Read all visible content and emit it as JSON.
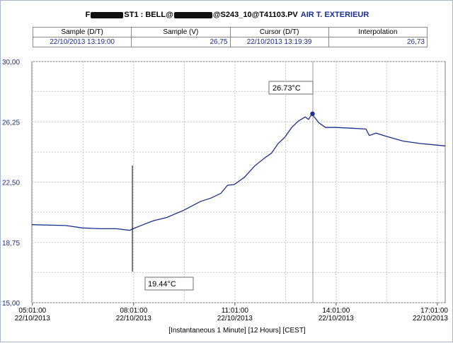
{
  "title": {
    "prefix": "F",
    "mid1": "ST1 : BELL@",
    "mid2": "@S243_10@T41103.PV",
    "tag": "AIR T. EXTERIEUR"
  },
  "info_table": {
    "headers": [
      "Sample (D/T)",
      "Sample (V)",
      "Cursor (D/T)",
      "Interpolation"
    ],
    "values": [
      "22/10/2013 13:19:00",
      "26,75",
      "22/10/2013 13:19:39",
      "26,73"
    ]
  },
  "cursor_label": "26.73°C",
  "marker_label": "19.44°C",
  "footer": "[Instantaneous 1 Minute] [12 Hours] [CEST]",
  "colors": {
    "series": "#1a2f8c",
    "labels": "#1a2f8c",
    "grid": "#c8c8c8",
    "cursor": "#9a9a9a"
  },
  "chart_data": {
    "type": "line",
    "ylim": [
      15,
      30
    ],
    "yticks": [
      "30,00",
      "26,25",
      "22,50",
      "18,75",
      "15,00"
    ],
    "ytick_values": [
      30,
      26.25,
      22.5,
      18.75,
      15
    ],
    "xlim_hours": [
      5,
      17.25
    ],
    "xticks": [
      {
        "time": "05:01:00",
        "date": "22/10/2013",
        "hour": 5.0167
      },
      {
        "time": "08:01:00",
        "date": "22/10/2013",
        "hour": 8.0167
      },
      {
        "time": "11:01:00",
        "date": "22/10/2013",
        "hour": 11.0167
      },
      {
        "time": "14:01:00",
        "date": "22/10/2013",
        "hour": 14.0167
      },
      {
        "time": "17:01:00",
        "date": "22/10/2013",
        "hour": 17.0167
      }
    ],
    "cursor_hour": 13.328,
    "marker_hour": 7.98,
    "sample_point": {
      "x": 13.317,
      "y": 26.75
    },
    "series": [
      {
        "x": [
          5.0,
          6.0,
          6.5,
          7.0,
          7.5,
          7.9,
          8.0,
          8.3,
          8.6,
          9.0,
          9.5,
          10.0,
          10.3,
          10.6,
          10.8,
          11.0,
          11.3,
          11.6,
          11.9,
          12.1,
          12.3,
          12.5,
          12.7,
          12.9,
          13.1,
          13.2,
          13.3,
          13.5,
          13.7,
          14.0,
          14.5,
          14.9,
          15.0,
          15.2,
          15.5,
          16.0,
          16.5,
          17.0,
          17.25
        ],
        "y": [
          19.85,
          19.8,
          19.65,
          19.6,
          19.6,
          19.5,
          19.6,
          19.85,
          20.1,
          20.3,
          20.75,
          21.3,
          21.5,
          21.8,
          22.3,
          22.35,
          22.8,
          23.5,
          24.0,
          24.3,
          24.9,
          25.3,
          25.9,
          26.3,
          26.55,
          26.4,
          26.75,
          26.2,
          25.9,
          25.9,
          25.85,
          25.8,
          25.4,
          25.55,
          25.35,
          25.05,
          24.9,
          24.8,
          24.75
        ]
      }
    ]
  }
}
